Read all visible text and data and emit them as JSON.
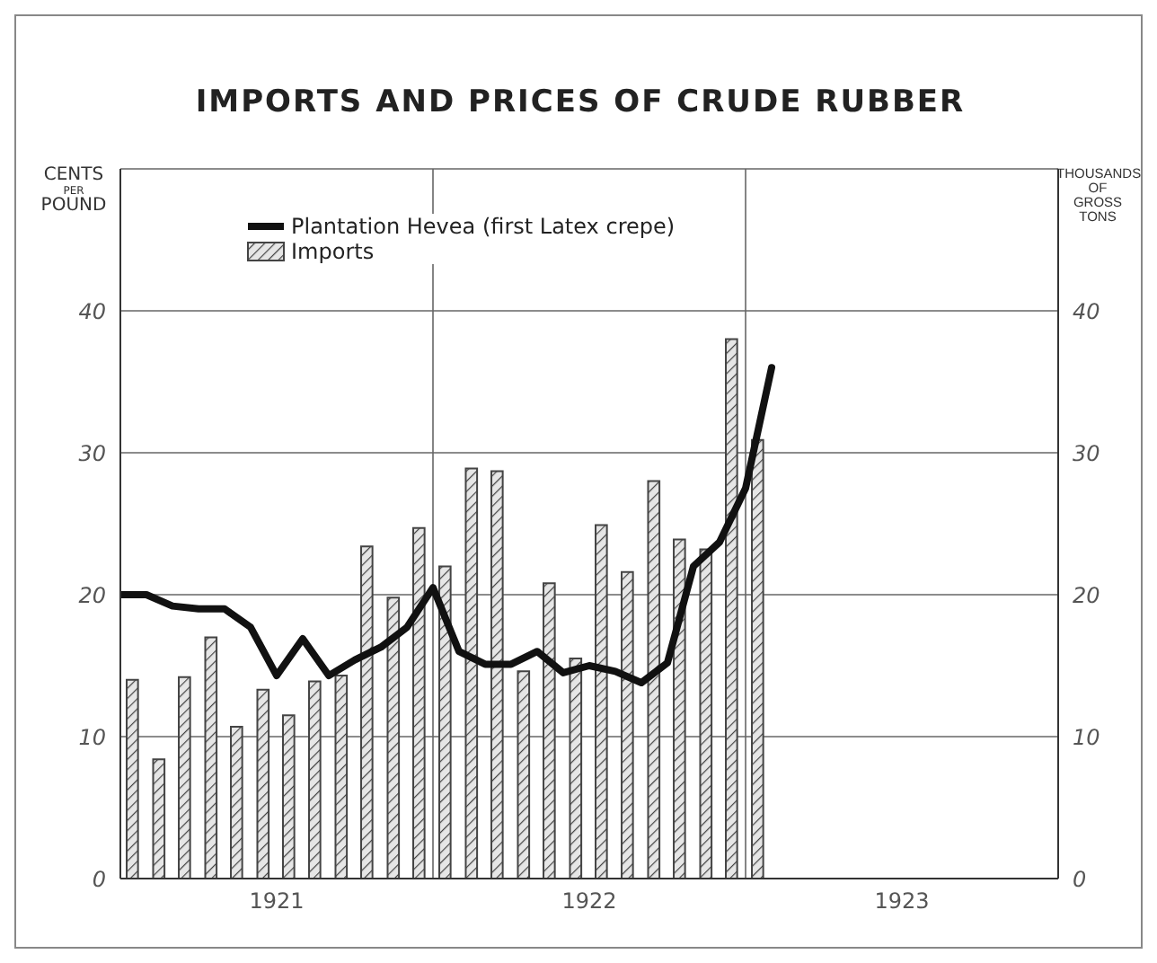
{
  "chart_data": {
    "type": "bar",
    "title": "IMPORTS AND PRICES OF CRUDE RUBBER",
    "ylabel": "CENTS PER POUND",
    "y2label": "THOUSANDS OF GROSS TONS",
    "x": [
      "1921-01-16",
      "1921-02-15",
      "1921-03-16",
      "1921-04-16",
      "1921-05-16",
      "1921-06-16",
      "1921-07-16",
      "1921-08-16",
      "1921-09-16",
      "1921-10-16",
      "1921-11-16",
      "1921-12-16",
      "1922-01-16",
      "1922-02-15",
      "1922-03-16",
      "1922-04-16",
      "1922-05-16",
      "1922-06-16",
      "1922-07-16",
      "1922-08-16",
      "1922-09-16",
      "1922-10-16",
      "1922-11-16",
      "1922-12-16",
      "1923-01-16"
    ],
    "series": [
      {
        "name": "Plantation Hevea (first Latex crepe)",
        "type": "line",
        "color": "#111111",
        "x": [
          "1921-01",
          "1921-02",
          "1921-03",
          "1921-04",
          "1921-05",
          "1921-06",
          "1921-07",
          "1921-08",
          "1921-09",
          "1921-10",
          "1921-11",
          "1921-12",
          "1922-01",
          "1922-02",
          "1922-03",
          "1922-04",
          "1922-05",
          "1922-06",
          "1922-07",
          "1922-08",
          "1922-09",
          "1922-10",
          "1922-11",
          "1922-12",
          "1923-01",
          "1923-02"
        ],
        "values": [
          20,
          20,
          19.2,
          19,
          19,
          17.7,
          14.3,
          16.9,
          14.3,
          15.4,
          16.3,
          17.7,
          20.5,
          16,
          15.1,
          15.1,
          16,
          14.5,
          15,
          14.6,
          13.8,
          15.2,
          22,
          23.7,
          27.5,
          36
        ]
      },
      {
        "name": "Imports",
        "axis": "y2",
        "color": "#444444",
        "values": [
          14,
          8.4,
          14.2,
          17,
          10.7,
          13.3,
          11.5,
          13.9,
          14.3,
          23.4,
          19.8,
          24.7,
          22,
          28.9,
          28.7,
          14.6,
          20.8,
          15.5,
          24.9,
          21.6,
          28,
          23.9,
          23.2,
          38,
          30.9
        ]
      }
    ],
    "xlim": [
      "1921-01",
      "1924-01"
    ],
    "xticks": [
      {
        "value": "1921-07",
        "label": "1921"
      },
      {
        "value": "1922-07",
        "label": "1922"
      },
      {
        "value": "1923-07",
        "label": "1923"
      }
    ],
    "ylim": [
      0,
      50
    ],
    "yticks": [
      0,
      10,
      20,
      30,
      40
    ],
    "y2lim": [
      0,
      50
    ],
    "y2ticks": [
      0,
      10,
      20,
      30,
      40
    ],
    "ref_lines": [
      {
        "axis": "x",
        "value": "1922-01"
      },
      {
        "axis": "x",
        "value": "1923-01"
      }
    ],
    "grid": "y",
    "legend": "top left"
  }
}
